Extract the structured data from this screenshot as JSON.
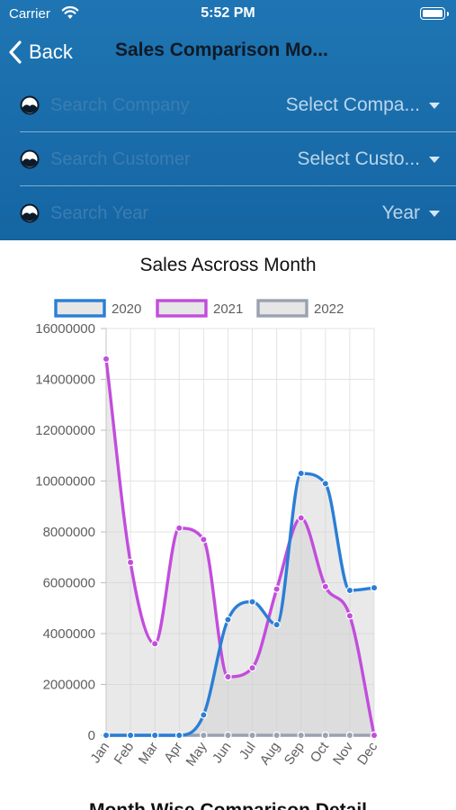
{
  "status_bar": {
    "carrier": "Carrier",
    "time": "5:52 PM"
  },
  "nav": {
    "back_label": "Back",
    "title": "Sales Comparison Mo..."
  },
  "filters": [
    {
      "placeholder": "Search Company",
      "select_value": "Select Compa..."
    },
    {
      "placeholder": "Search Customer",
      "select_value": "Select Custo..."
    },
    {
      "placeholder": "Search Year",
      "select_value": "Year"
    }
  ],
  "colors": {
    "header_bg": "#1b6eae",
    "series_2020": "#2a7ed6",
    "series_2021": "#c24ddc",
    "series_2022": "#9aa2b1",
    "fill": "#cfcfcf"
  },
  "chart_data": {
    "type": "area",
    "title": "Sales Ascross Month",
    "categories": [
      "Jan",
      "Feb",
      "Mar",
      "Apr",
      "May",
      "Jun",
      "Jul",
      "Aug",
      "Sep",
      "Oct",
      "Nov",
      "Dec"
    ],
    "ylim": [
      0,
      16000000
    ],
    "yticks": [
      "0",
      "2000000",
      "4000000",
      "6000000",
      "8000000",
      "10000000",
      "12000000",
      "14000000",
      "16000000"
    ],
    "legend_position": "top",
    "grid": true,
    "series": [
      {
        "name": "2020",
        "values": [
          0,
          0,
          0,
          0,
          800000,
          4550000,
          5250000,
          4350000,
          10300000,
          9900000,
          5700000,
          5800000
        ]
      },
      {
        "name": "2021",
        "values": [
          14800000,
          6800000,
          3600000,
          8150000,
          7700000,
          2300000,
          2650000,
          5750000,
          8550000,
          5850000,
          4700000,
          0
        ]
      },
      {
        "name": "2022",
        "values": [
          0,
          0,
          0,
          0,
          0,
          0,
          0,
          0,
          0,
          0,
          0,
          0
        ]
      }
    ]
  },
  "bottom_title": "Month Wise Comparison Detail"
}
